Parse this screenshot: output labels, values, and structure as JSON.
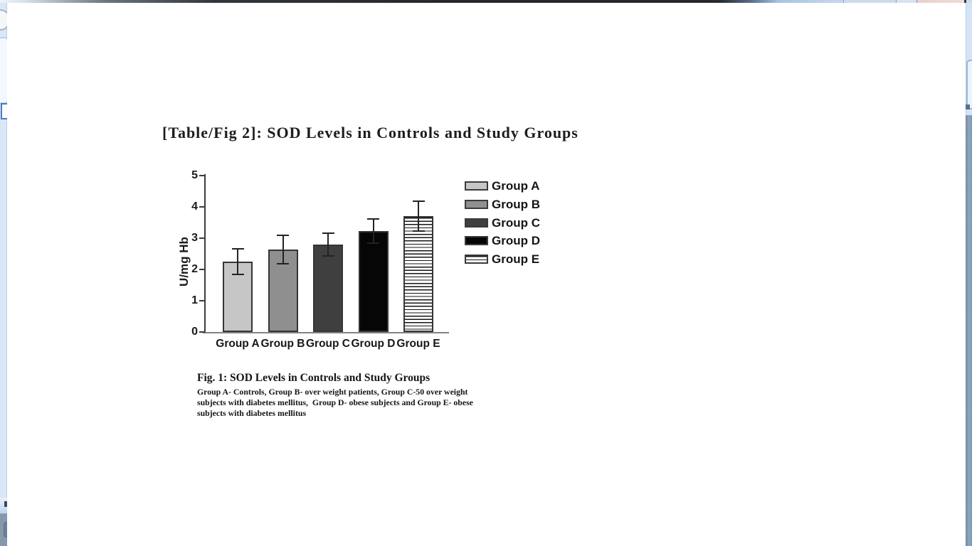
{
  "document": {
    "title": "[Table/Fig 2]: SOD Levels in Controls and Study Groups"
  },
  "figure": {
    "caption_title": "Fig. 1: SOD Levels in Controls and Study Groups",
    "caption_lines": [
      "Group A- Controls, Group B- over weight patients, Group C-50 over weight",
      "subjects with diabetes mellitus,  Group D- obese subjects and Group E- obese",
      "subjects with diabetes mellitus"
    ]
  },
  "chart_data": {
    "type": "bar",
    "title": "",
    "xlabel": "",
    "ylabel": "U/mg Hb",
    "ylim": [
      0,
      5
    ],
    "yticks": [
      0,
      1,
      2,
      3,
      4,
      5
    ],
    "grid": false,
    "legend_position": "right",
    "categories": [
      "Group A",
      "Group B",
      "Group C",
      "Group D",
      "Group E"
    ],
    "values": [
      2.25,
      2.63,
      2.8,
      3.22,
      3.7
    ],
    "errors": [
      0.4,
      0.45,
      0.36,
      0.39,
      0.48
    ],
    "series": [
      {
        "name": "Group A",
        "fill": "#c6c6c6",
        "hatch": "none"
      },
      {
        "name": "Group B",
        "fill": "#8f8f8f",
        "hatch": "none"
      },
      {
        "name": "Group C",
        "fill": "#3f3f3f",
        "hatch": "none"
      },
      {
        "name": "Group D",
        "fill": "#060606",
        "hatch": "none"
      },
      {
        "name": "Group E",
        "fill": "#ffffff",
        "hatch": "horizontal"
      }
    ]
  },
  "chrome": {
    "accent_light_blue": "#d9e7f8",
    "accent_steel": "#8096ad",
    "caption_button_colors": [
      "#ccdbec",
      "#d8e2ef",
      "#f2dcd8"
    ]
  }
}
